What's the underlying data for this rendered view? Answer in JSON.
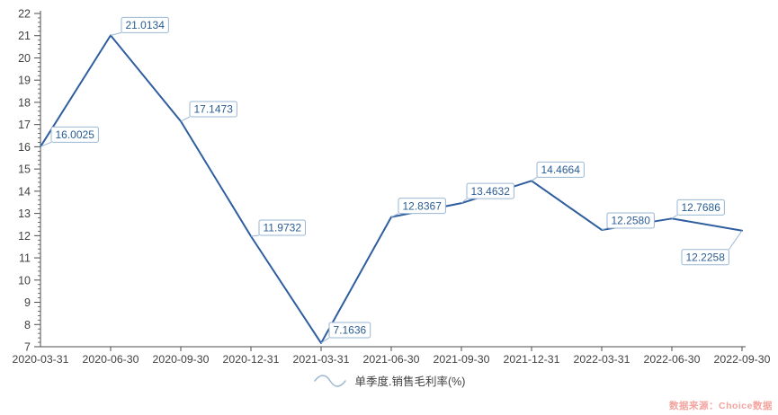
{
  "chart_data": {
    "type": "line",
    "title": "",
    "x": [
      "2020-03-31",
      "2020-06-30",
      "2020-09-30",
      "2020-12-31",
      "2021-03-31",
      "2021-06-30",
      "2021-09-30",
      "2021-12-31",
      "2022-03-31",
      "2022-06-30",
      "2022-09-30"
    ],
    "series": [
      {
        "name": "单季度.销售毛利率(%)",
        "values": [
          16.0025,
          21.0134,
          17.1473,
          11.9732,
          7.1636,
          12.8367,
          13.4632,
          14.4664,
          12.258,
          12.7686,
          12.2258
        ],
        "labels": [
          "16.0025",
          "21.0134",
          "17.1473",
          "11.9732",
          "7.1636",
          "12.8367",
          "13.4632",
          "14.4664",
          "12.2580",
          "12.7686",
          "12.2258"
        ]
      }
    ],
    "ylim": [
      7,
      22
    ],
    "y_tick_step": 1,
    "y_tick_labels": [
      "7",
      "8",
      "9",
      "10",
      "11",
      "12",
      "13",
      "14",
      "15",
      "16",
      "17",
      "18",
      "19",
      "20",
      "21",
      "22"
    ],
    "grid": false,
    "legend_position": "bottom",
    "data_labels_visible": true
  },
  "watermark": {
    "text": "数据来源：Choice数据"
  },
  "colors": {
    "series_line": "#2f5e9f",
    "label_text": "#2a5d93",
    "label_border": "#9ab7d3",
    "label_bg": "#ffffff",
    "axis": "#4d4d4d",
    "tick_label": "#404040",
    "legend_swatch": "#9fb9d0",
    "legend_text": "#404040",
    "watermark": "#f4a49e"
  }
}
